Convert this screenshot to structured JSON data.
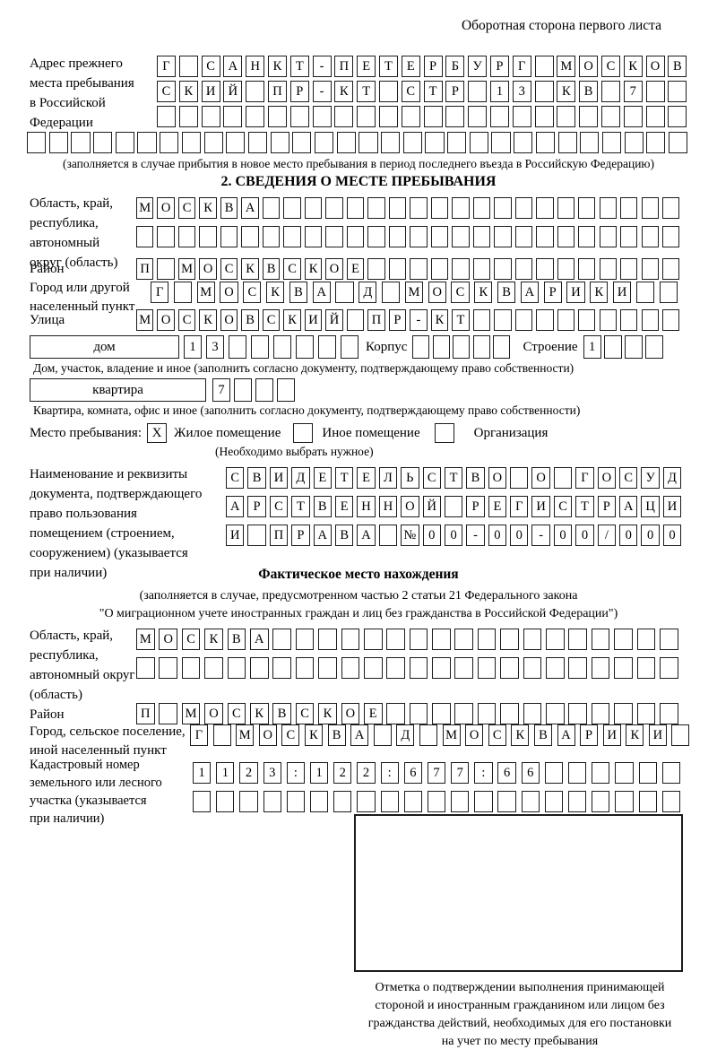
{
  "header": {
    "note": "Оборотная сторона первого листа"
  },
  "prev_address": {
    "label": "Адрес прежнего\nместа пребывания\nв Российской\nФедерации",
    "rows": [
      {
        "text": "Г САНКТ-ПЕТЕРБУРГ МОСКОВ",
        "count": 24
      },
      {
        "text": "СКИЙ ПР-КТ СТР 13 КВ 7",
        "count": 24
      },
      {
        "text": "",
        "count": 24
      },
      {
        "text": "",
        "count": 30
      }
    ],
    "note": "(заполняется в случае прибытия в новое место пребывания в период последнего въезда в Российскую Федерацию)"
  },
  "section2": {
    "heading": "2. СВЕДЕНИЯ О МЕСТЕ ПРЕБЫВАНИЯ",
    "oblast": {
      "label": "Область, край,\nреспублика,\nавтономный\nокруг (область)",
      "row1": {
        "text": "МОСКВА",
        "count": 26
      },
      "row2": {
        "text": "",
        "count": 26
      }
    },
    "rayon": {
      "label": "Район",
      "row": {
        "text": "П МОСКВСКОЕ",
        "count": 26
      }
    },
    "gorod": {
      "label": "Город или другой\nнаселенный пункт",
      "row": {
        "text": "Г МОСКВА Д МОСКВАРИКИ",
        "count": 23
      }
    },
    "ulitsa": {
      "label": "Улица",
      "row": {
        "text": "МОСКОВСКИЙ ПР-КТ",
        "count": 26
      }
    },
    "dom": {
      "box_label": "дом",
      "cells": {
        "text": "13",
        "count": 8
      },
      "korpus_label": "Корпус",
      "korpus_cells": {
        "text": "",
        "count": 5
      },
      "stroenie_label": "Строение",
      "stroenie_cells": {
        "text": "1",
        "count": 4
      }
    },
    "dom_note": "Дом, участок, владение и иное (заполнить согласно документу, подтверждающему право собственности)",
    "kvartira": {
      "box_label": "квартира",
      "cells": {
        "text": "7",
        "count": 4
      }
    },
    "kvartira_note": "Квартира, комната, офис и иное (заполнить согласно документу, подтверждающему право собственности)",
    "mesto": {
      "label": "Место пребывания:",
      "opt1_mark": "X",
      "opt1": "Жилое помещение",
      "opt2_mark": "",
      "opt2": "Иное помещение",
      "opt3_mark": "",
      "opt3": "Организация",
      "note": "(Необходимо выбрать нужное)"
    },
    "document": {
      "label": "Наименование и реквизиты\nдокумента, подтверждающего\nправо пользования\nпомещением (строением,\nсооружением) (указывается\nпри наличии)",
      "rows": [
        {
          "text": "СВИДЕТЕЛЬСТВО О ГОСУД",
          "count": 21
        },
        {
          "text": "АРСТВЕННОЙ РЕГИСТРАЦИ",
          "count": 21
        },
        {
          "text": "И ПРАВА №00-00-00/000",
          "count": 21
        }
      ]
    }
  },
  "fact": {
    "heading": "Фактическое место нахождения",
    "note1": "(заполняется в случае, предусмотренном частью 2 статьи 21 Федерального закона",
    "note2": "\"О миграционном учете иностранных граждан и лиц без гражданства в Российской Федерации\")",
    "oblast": {
      "label": "Область, край,\nреспублика,\nавтономный округ\n(область)",
      "row1": {
        "text": "МОСКВА",
        "count": 24
      },
      "row2": {
        "text": "",
        "count": 24
      }
    },
    "rayon": {
      "label": "Район",
      "row": {
        "text": "П МОСКВСКОЕ",
        "count": 24
      }
    },
    "gorod": {
      "label": "Город, сельское поселение,\nиной населенный пункт",
      "row": {
        "text": "Г МОСКВА Д МОСКВАРИКИ",
        "count": 22
      }
    },
    "kadastr": {
      "label": "Кадастровый номер\nземельного или лесного\nучастка (указывается\nпри наличии)",
      "row1": {
        "text": "1123:122:677:66",
        "count": 21
      },
      "row2": {
        "text": "",
        "count": 21
      }
    },
    "stamp_caption": "Отметка о подтверждении выполнения принимающей\nстороной и иностранным гражданином или лицом без\nгражданства действий, необходимых для его постановки\nна учет по месту пребывания"
  }
}
